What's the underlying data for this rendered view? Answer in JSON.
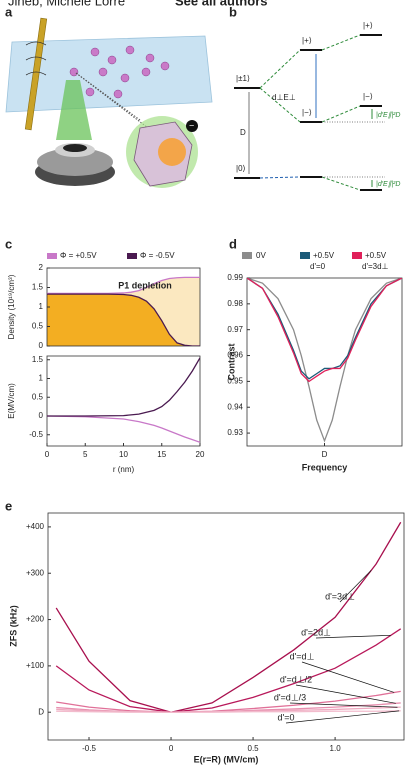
{
  "header": {
    "authors": "Jineb, Michele Lorre",
    "link": "See all authors"
  },
  "panel_labels": [
    "a",
    "b",
    "c",
    "d",
    "e"
  ],
  "diagram": {
    "levels": [
      "|±1⟩",
      "|0⟩",
      "|+⟩",
      "|−⟩",
      "|+⟩",
      "|−⟩"
    ],
    "coupling": "d⊥E⊥",
    "splitting": "D",
    "shifts": [
      "|d′E∥|²D",
      "|d′E∥|²D"
    ]
  },
  "chart_data": [
    {
      "type": "line",
      "ylabel": "Density (10¹⁹/cm³)",
      "annotation": "P1 depletion",
      "x": [
        0,
        2,
        4,
        6,
        8,
        10,
        11,
        12,
        13,
        14,
        15,
        16,
        17,
        18,
        19,
        20
      ],
      "xlim": [
        0,
        20
      ],
      "ylim": [
        0,
        2
      ],
      "yticks": [
        0,
        0.5,
        1,
        1.5,
        2
      ],
      "series": [
        {
          "name": "Φ = +0.5V",
          "color": "#c878c8",
          "fill": "#fbe8c0",
          "values": [
            1.35,
            1.35,
            1.35,
            1.35,
            1.35,
            1.36,
            1.38,
            1.42,
            1.5,
            1.6,
            1.68,
            1.73,
            1.75,
            1.76,
            1.76,
            1.76
          ]
        },
        {
          "name": "Φ = -0.5V",
          "color": "#4a1a50",
          "fill": "#f3ae22",
          "values": [
            1.33,
            1.33,
            1.33,
            1.33,
            1.33,
            1.32,
            1.3,
            1.25,
            1.15,
            0.95,
            0.65,
            0.3,
            0.08,
            0.02,
            0,
            0
          ]
        }
      ]
    },
    {
      "type": "line",
      "xlabel": "r (nm)",
      "ylabel": "E(MV/cm)",
      "x": [
        0,
        5,
        10,
        12,
        14,
        15,
        16,
        17,
        18,
        19,
        20
      ],
      "xlim": [
        0,
        20
      ],
      "xticks": [
        0,
        5,
        10,
        15,
        20
      ],
      "ylim": [
        -0.8,
        1.6
      ],
      "yticks": [
        -0.5,
        0,
        0.5,
        1,
        1.5
      ],
      "series": [
        {
          "name": "Φ = +0.5V",
          "color": "#c878c8",
          "values": [
            0,
            -0.02,
            -0.08,
            -0.15,
            -0.25,
            -0.32,
            -0.4,
            -0.48,
            -0.56,
            -0.63,
            -0.7
          ]
        },
        {
          "name": "Φ = -0.5V",
          "color": "#4a1a50",
          "values": [
            0,
            0,
            0.01,
            0.05,
            0.15,
            0.25,
            0.42,
            0.65,
            0.9,
            1.2,
            1.55
          ]
        }
      ]
    },
    {
      "type": "line",
      "xlabel": "Frequency",
      "ylabel": "Contrast",
      "x": [
        -1,
        -0.8,
        -0.6,
        -0.4,
        -0.3,
        -0.2,
        -0.1,
        0,
        0.1,
        0.2,
        0.3,
        0.4,
        0.6,
        0.8,
        1
      ],
      "xlim": [
        -1,
        1
      ],
      "xticks": [
        {
          "value": 0,
          "label": "D"
        }
      ],
      "ylim": [
        0.925,
        0.99
      ],
      "yticks": [
        0.93,
        0.94,
        0.95,
        0.96,
        0.97,
        0.98,
        0.99
      ],
      "series": [
        {
          "name": "0V",
          "color": "#8c8c8c",
          "values": [
            0.99,
            0.988,
            0.982,
            0.97,
            0.96,
            0.948,
            0.935,
            0.927,
            0.935,
            0.948,
            0.96,
            0.97,
            0.982,
            0.988,
            0.99
          ]
        },
        {
          "name": "+0.5V",
          "subtitle": "d'=0",
          "color": "#1b5a78",
          "values": [
            0.99,
            0.986,
            0.976,
            0.962,
            0.954,
            0.951,
            0.953,
            0.955,
            0.955,
            0.956,
            0.96,
            0.967,
            0.98,
            0.987,
            0.99
          ]
        },
        {
          "name": "+0.5V",
          "subtitle": "d'=3d⊥",
          "color": "#e0205a",
          "values": [
            0.99,
            0.986,
            0.975,
            0.961,
            0.953,
            0.95,
            0.952,
            0.954,
            0.955,
            0.955,
            0.959,
            0.966,
            0.979,
            0.987,
            0.99
          ]
        }
      ]
    },
    {
      "type": "line",
      "xlabel": "E(r=R) (MV/cm)",
      "ylabel": "ZFS (kHz)",
      "x": [
        -0.7,
        -0.5,
        -0.25,
        0,
        0.25,
        0.5,
        0.75,
        1.0,
        1.25,
        1.4
      ],
      "xlim": [
        -0.75,
        1.42
      ],
      "xticks": [
        -0.5,
        0,
        0.5,
        {
          "value": 1,
          "label": "1.0"
        }
      ],
      "ylim": [
        -60,
        430
      ],
      "yticks": [
        {
          "value": 0,
          "label": "D"
        },
        {
          "value": 100,
          "label": "+100"
        },
        {
          "value": 200,
          "label": "+200"
        },
        {
          "value": 300,
          "label": "+300"
        },
        {
          "value": 400,
          "label": "+400"
        }
      ],
      "series": [
        {
          "name": "d'=3d⊥",
          "color": "#a8104e",
          "values": [
            225,
            110,
            25,
            0,
            20,
            75,
            135,
            205,
            320,
            410
          ]
        },
        {
          "name": "d'=2d⊥",
          "color": "#b8185a",
          "values": [
            100,
            48,
            12,
            0,
            9,
            32,
            62,
            95,
            145,
            180
          ]
        },
        {
          "name": "d'=d⊥",
          "color": "#e07098",
          "values": [
            22,
            11,
            3,
            0,
            2,
            8,
            15,
            24,
            36,
            45
          ]
        },
        {
          "name": "d'=d⊥/2",
          "color": "#e890b0",
          "values": [
            10,
            5,
            1,
            0,
            1,
            4,
            7,
            11,
            16,
            20
          ]
        },
        {
          "name": "d'=d⊥/3",
          "color": "#eeaac0",
          "values": [
            6,
            3,
            1,
            0,
            1,
            2,
            4,
            6,
            9,
            11
          ]
        },
        {
          "name": "d'=0",
          "color": "#f2bccd",
          "values": [
            2,
            1,
            0,
            0,
            0,
            1,
            1,
            2,
            2,
            3
          ]
        }
      ]
    }
  ]
}
